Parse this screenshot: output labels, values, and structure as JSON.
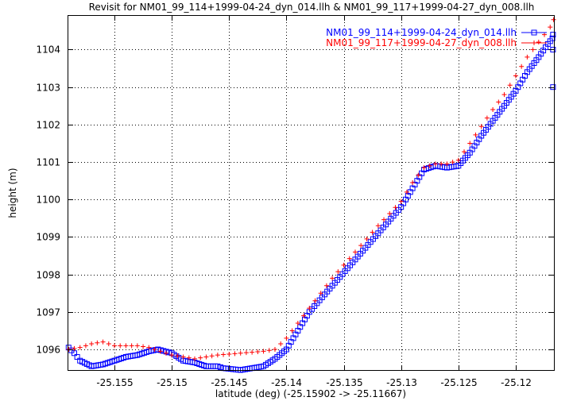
{
  "chart_data": {
    "type": "scatter",
    "title": "Revisit for NM01_99_114+1999-04-24_dyn_014.llh & NM01_99_117+1999-04-27_dyn_008.llh",
    "xlabel": "latitude (deg) (-25.15902 -> -25.11667)",
    "ylabel": "height (m)",
    "xlim": [
      -25.15902,
      -25.11667
    ],
    "ylim": [
      1095.45,
      1104.9
    ],
    "xticks": [
      -25.155,
      -25.15,
      -25.145,
      -25.14,
      -25.135,
      -25.13,
      -25.125,
      -25.12
    ],
    "xtick_labels": [
      "-25.155",
      "-25.15",
      "-25.145",
      "-25.14",
      "-25.135",
      "-25.13",
      "-25.125",
      "-25.12"
    ],
    "yticks": [
      1096,
      1097,
      1098,
      1099,
      1100,
      1101,
      1102,
      1103,
      1104
    ],
    "ytick_labels": [
      "1096",
      "1097",
      "1098",
      "1099",
      "1100",
      "1101",
      "1102",
      "1103",
      "1104"
    ],
    "grid": true,
    "legend_position": "top-right",
    "series": [
      {
        "name": "NM01_99_114+1999-04-24_dyn_014.llh",
        "color": "#0000ff",
        "marker": "square",
        "point_step": 0.00022,
        "keypoints": [
          [
            -25.159,
            1096.05
          ],
          [
            -25.1585,
            1095.9
          ],
          [
            -25.158,
            1095.7
          ],
          [
            -25.157,
            1095.55
          ],
          [
            -25.156,
            1095.6
          ],
          [
            -25.155,
            1095.7
          ],
          [
            -25.154,
            1095.8
          ],
          [
            -25.153,
            1095.85
          ],
          [
            -25.152,
            1095.95
          ],
          [
            -25.1512,
            1096.0
          ],
          [
            -25.15,
            1095.9
          ],
          [
            -25.149,
            1095.7
          ],
          [
            -25.148,
            1095.65
          ],
          [
            -25.147,
            1095.55
          ],
          [
            -25.146,
            1095.55
          ],
          [
            -25.1455,
            1095.5
          ],
          [
            -25.144,
            1095.45
          ],
          [
            -25.143,
            1095.5
          ],
          [
            -25.142,
            1095.55
          ],
          [
            -25.141,
            1095.75
          ],
          [
            -25.14,
            1096.0
          ],
          [
            -25.139,
            1096.5
          ],
          [
            -25.138,
            1097.0
          ],
          [
            -25.136,
            1097.7
          ],
          [
            -25.134,
            1098.4
          ],
          [
            -25.132,
            1099.1
          ],
          [
            -25.13,
            1099.8
          ],
          [
            -25.129,
            1100.3
          ],
          [
            -25.128,
            1100.8
          ],
          [
            -25.127,
            1100.9
          ],
          [
            -25.126,
            1100.85
          ],
          [
            -25.125,
            1100.9
          ],
          [
            -25.124,
            1101.25
          ],
          [
            -25.123,
            1101.7
          ],
          [
            -25.122,
            1102.1
          ],
          [
            -25.121,
            1102.5
          ],
          [
            -25.12,
            1102.9
          ],
          [
            -25.119,
            1103.4
          ],
          [
            -25.118,
            1103.8
          ],
          [
            -25.1172,
            1104.15
          ],
          [
            -25.1168,
            1104.3
          ]
        ],
        "extra_points": [
          [
            -25.11675,
            1103.0
          ],
          [
            -25.11675,
            1104.0
          ],
          [
            -25.11675,
            1104.4
          ]
        ]
      },
      {
        "name": "NM01_99_117+1999-04-27_dyn_008.llh",
        "color": "#ff0000",
        "marker": "plus",
        "point_step": 0.00045,
        "keypoints": [
          [
            -25.159,
            1096.0
          ],
          [
            -25.158,
            1096.05
          ],
          [
            -25.157,
            1096.15
          ],
          [
            -25.156,
            1096.2
          ],
          [
            -25.155,
            1096.1
          ],
          [
            -25.153,
            1096.1
          ],
          [
            -25.152,
            1096.05
          ],
          [
            -25.151,
            1095.95
          ],
          [
            -25.15,
            1095.85
          ],
          [
            -25.149,
            1095.8
          ],
          [
            -25.148,
            1095.75
          ],
          [
            -25.147,
            1095.8
          ],
          [
            -25.146,
            1095.85
          ],
          [
            -25.144,
            1095.9
          ],
          [
            -25.142,
            1095.95
          ],
          [
            -25.141,
            1096.0
          ],
          [
            -25.14,
            1096.3
          ],
          [
            -25.139,
            1096.7
          ],
          [
            -25.138,
            1097.1
          ],
          [
            -25.136,
            1097.9
          ],
          [
            -25.134,
            1098.6
          ],
          [
            -25.132,
            1099.3
          ],
          [
            -25.13,
            1099.95
          ],
          [
            -25.129,
            1100.45
          ],
          [
            -25.128,
            1100.85
          ],
          [
            -25.127,
            1100.95
          ],
          [
            -25.126,
            1100.95
          ],
          [
            -25.125,
            1101.05
          ],
          [
            -25.124,
            1101.5
          ],
          [
            -25.123,
            1101.95
          ],
          [
            -25.122,
            1102.4
          ],
          [
            -25.121,
            1102.8
          ],
          [
            -25.12,
            1103.3
          ],
          [
            -25.119,
            1103.8
          ],
          [
            -25.118,
            1104.2
          ],
          [
            -25.117,
            1104.6
          ],
          [
            -25.1167,
            1104.8
          ]
        ],
        "extra_points": []
      }
    ]
  }
}
